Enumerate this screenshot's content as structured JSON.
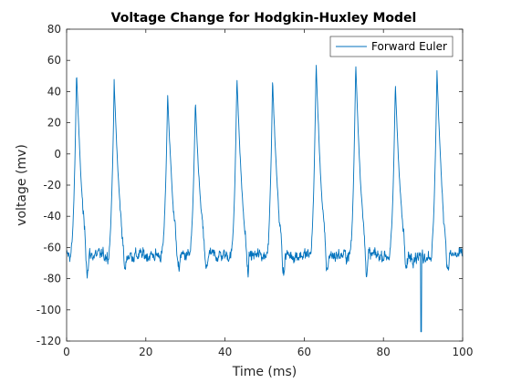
{
  "chart_data": {
    "type": "line",
    "title": "Voltage Change for Hodgkin-Huxley Model",
    "xlabel": "Time (ms)",
    "ylabel": "voltage (mv)",
    "xlim": [
      0,
      100
    ],
    "ylim": [
      -120,
      80
    ],
    "xticks": [
      0,
      20,
      40,
      60,
      80,
      100
    ],
    "yticks": [
      -120,
      -100,
      -80,
      -60,
      -40,
      -20,
      0,
      20,
      40,
      60,
      80
    ],
    "grid": false,
    "legend_position": "top-right",
    "series": [
      {
        "name": "Forward Euler",
        "color": "#0072BD",
        "spike_peaks": [
          {
            "t": 2.5,
            "v": 54
          },
          {
            "t": 12.0,
            "v": 46
          },
          {
            "t": 25.5,
            "v": 39
          },
          {
            "t": 32.5,
            "v": 33
          },
          {
            "t": 43.0,
            "v": 50
          },
          {
            "t": 52.0,
            "v": 48
          },
          {
            "t": 63.0,
            "v": 59
          },
          {
            "t": 73.0,
            "v": 60
          },
          {
            "t": 83.0,
            "v": 46
          },
          {
            "t": 93.5,
            "v": 55
          }
        ],
        "baseline_mean": -65,
        "baseline_noise": 14,
        "min_value": -114,
        "min_time": 89.5
      }
    ]
  }
}
